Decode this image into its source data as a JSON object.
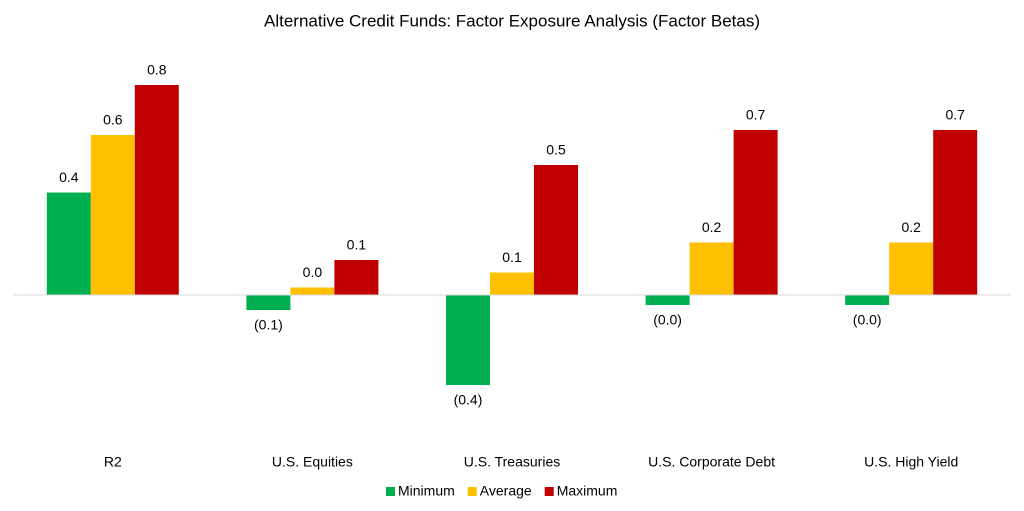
{
  "chart_data": {
    "type": "bar",
    "title": "Alternative Credit Funds: Factor Exposure Analysis (Factor Betas)",
    "categories": [
      "R2",
      "U.S. Equities",
      "U.S. Treasuries",
      "U.S. Corporate Debt",
      "U.S. High Yield"
    ],
    "series": [
      {
        "name": "Minimum",
        "color": "#00b050",
        "values": [
          0.41,
          -0.06,
          -0.36,
          -0.04,
          -0.04
        ],
        "value_labels": [
          "0.4",
          "(0.1)",
          "(0.4)",
          "(0.0)",
          "(0.0)"
        ]
      },
      {
        "name": "Average",
        "color": "#ffc000",
        "values": [
          0.64,
          0.03,
          0.09,
          0.21,
          0.21
        ],
        "value_labels": [
          "0.6",
          "0.0",
          "0.1",
          "0.2",
          "0.2"
        ]
      },
      {
        "name": "Maximum",
        "color": "#c00000",
        "values": [
          0.84,
          0.14,
          0.52,
          0.66,
          0.66
        ],
        "value_labels": [
          "0.8",
          "0.1",
          "0.5",
          "0.7",
          "0.7"
        ]
      }
    ],
    "ylim": [
      -0.6,
      1.0
    ],
    "legend": "bottom"
  }
}
